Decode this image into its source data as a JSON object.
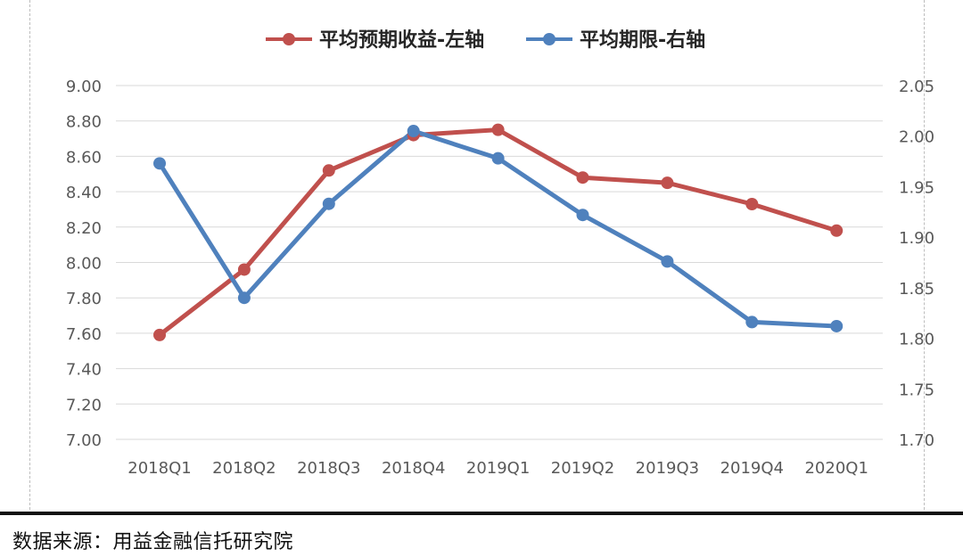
{
  "chart_data": {
    "type": "line",
    "categories": [
      "2018Q1",
      "2018Q2",
      "2018Q3",
      "2018Q4",
      "2019Q1",
      "2019Q2",
      "2019Q3",
      "2019Q4",
      "2020Q1"
    ],
    "series": [
      {
        "name": "平均预期收益-左轴",
        "axis": "left",
        "color": "#c0504d",
        "values": [
          7.59,
          7.96,
          8.52,
          8.72,
          8.75,
          8.48,
          8.45,
          8.33,
          8.18
        ]
      },
      {
        "name": "平均期限-右轴",
        "axis": "right",
        "color": "#4f81bd",
        "values": [
          1.973,
          1.84,
          1.933,
          2.005,
          1.978,
          1.922,
          1.876,
          1.816,
          1.812
        ]
      }
    ],
    "yleft": {
      "lim": [
        7.0,
        9.0
      ],
      "ticks": [
        "7.00",
        "7.20",
        "7.40",
        "7.60",
        "7.80",
        "8.00",
        "8.20",
        "8.40",
        "8.60",
        "8.80",
        "9.00"
      ]
    },
    "yright": {
      "lim": [
        1.7,
        2.05
      ],
      "ticks": [
        "1.70",
        "1.75",
        "1.80",
        "1.85",
        "1.90",
        "1.95",
        "2.00",
        "2.05"
      ]
    },
    "grid": true,
    "legend_position": "top-center"
  },
  "source_note": "数据来源：用益金融信托研究院"
}
